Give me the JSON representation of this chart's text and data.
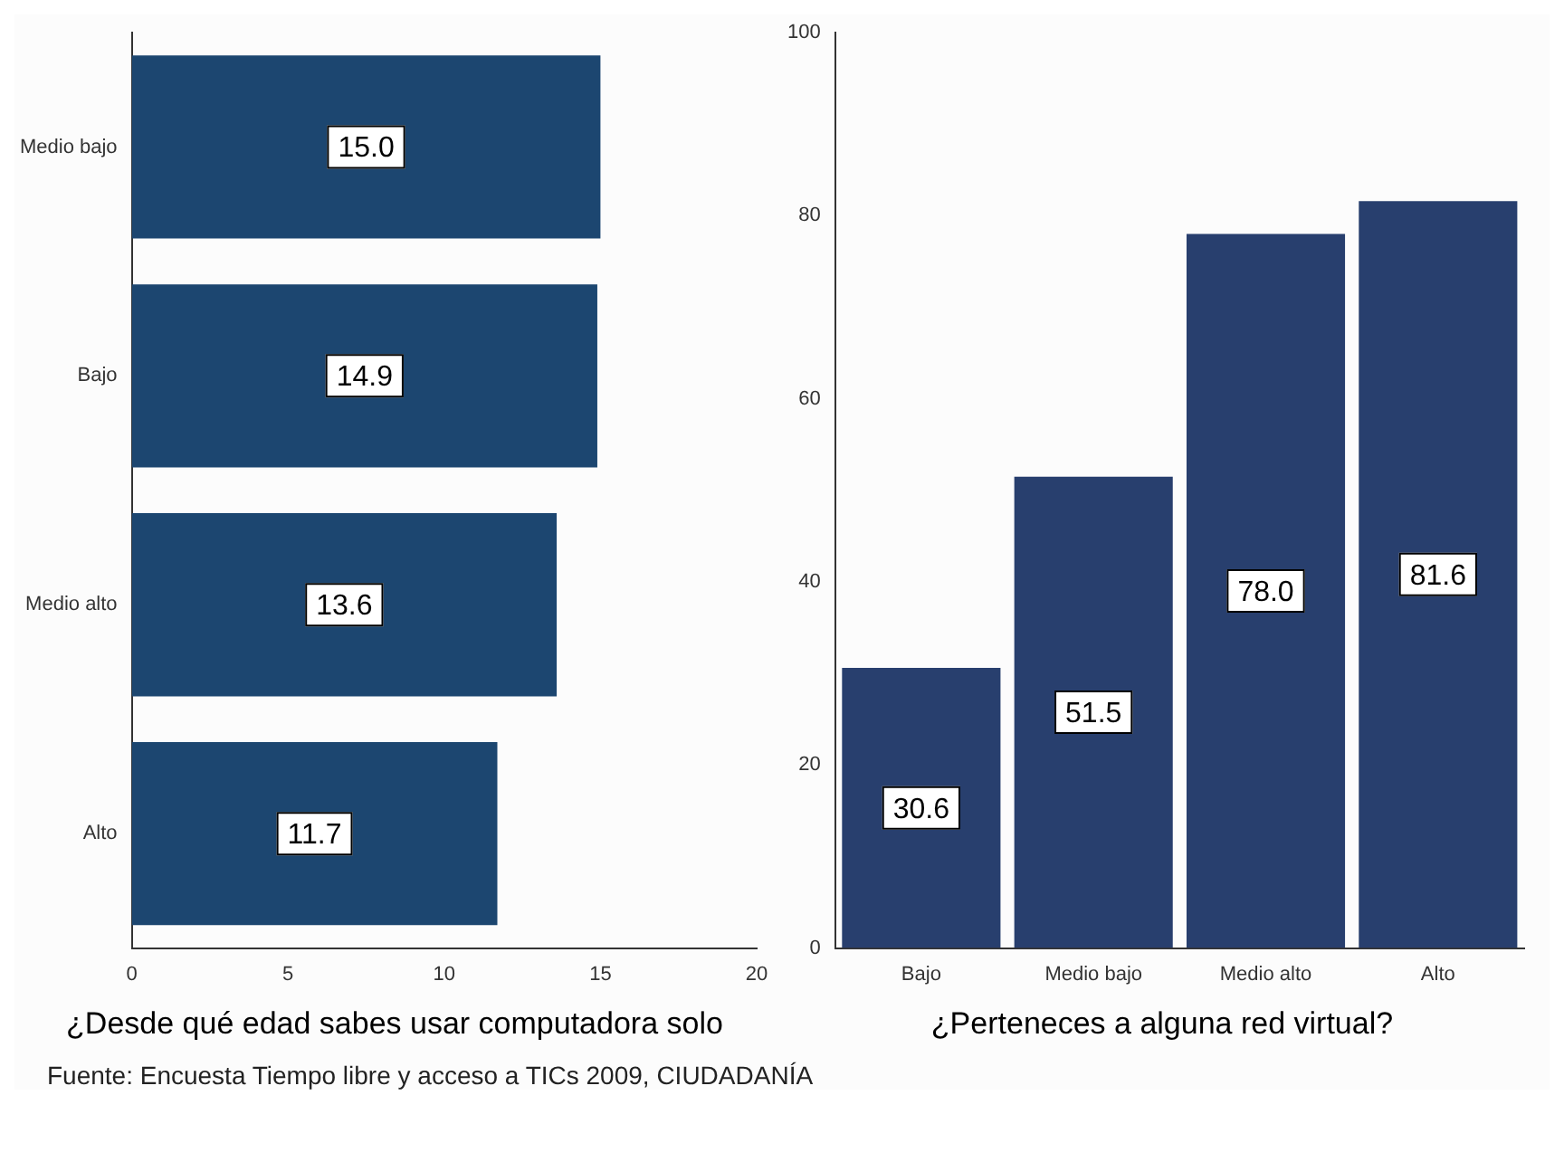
{
  "chart_data": [
    {
      "type": "bar",
      "orientation": "horizontal",
      "title": "¿Desde qué edad sabes usar computadora solo",
      "categories": [
        "Medio bajo",
        "Bajo",
        "Medio alto",
        "Alto"
      ],
      "values": [
        15.0,
        14.9,
        13.6,
        11.7
      ],
      "value_labels": [
        "15.0",
        "14.9",
        "13.6",
        "11.7"
      ],
      "color": "#1c4670",
      "xlim": [
        0,
        20
      ],
      "xticks": [
        0,
        5,
        10,
        15,
        20
      ],
      "grid": false,
      "legend": false,
      "annotations": [
        "Fuente: Encuesta Tiempo libre y acceso a TICs 2009, CIUDADANÍA"
      ]
    },
    {
      "type": "bar",
      "title": "¿Perteneces a alguna red virtual?",
      "categories": [
        "Bajo",
        "Medio bajo",
        "Medio alto",
        "Alto"
      ],
      "values": [
        30.6,
        51.5,
        78.0,
        81.6
      ],
      "value_labels": [
        "30.6",
        "51.5",
        "78.0",
        "81.6"
      ],
      "color": "#283f6e",
      "ylim": [
        0,
        100
      ],
      "yticks": [
        0,
        20,
        40,
        60,
        80,
        100
      ],
      "grid": false,
      "legend": false
    }
  ]
}
